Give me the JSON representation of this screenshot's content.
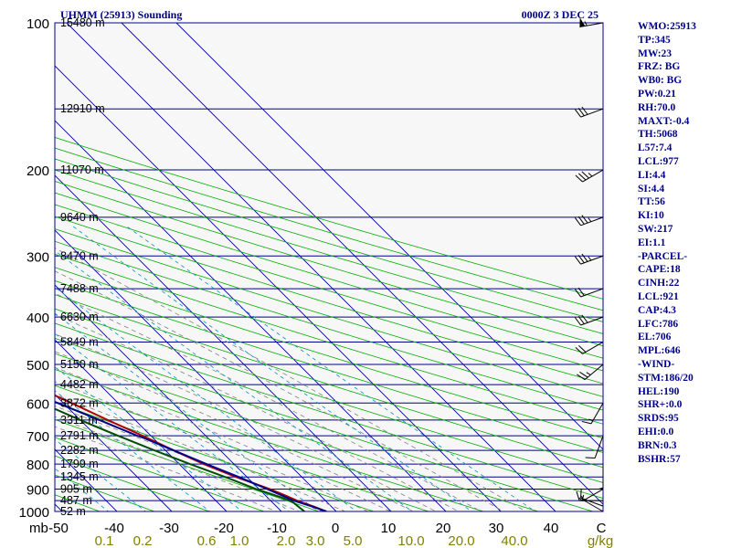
{
  "header": {
    "station_title": "UHMM (25913) Sounding",
    "valid_time": "0000Z  3 DEC 25"
  },
  "sidebar": {
    "lines": [
      "WMO:25913",
      "TP:345",
      "MW:23",
      "FRZ: BG",
      "WB0: BG",
      "PW:0.21",
      "RH:70.0",
      "MAXT:-0.4",
      "TH:5068",
      "L57:7.4",
      "LCL:977",
      "LI:4.4",
      "SI:4.4",
      "TT:56",
      "KI:10",
      "SW:217",
      "EI:1.1",
      "-PARCEL-",
      "CAPE:18",
      "CINH:22",
      "LCL:921",
      "CAP:4.3",
      "LFC:786",
      "EL:706",
      "MPL:646",
      "-WIND-",
      "STM:186/20",
      "HEL:190",
      "SHR+:0.0",
      "SRDS:95",
      "EHI:0.0",
      "BRN:0.3",
      "BSHR:57"
    ]
  },
  "chart_data": {
    "type": "line",
    "title": "UHMM (25913) Sounding",
    "subtitle": "0000Z  3 DEC 25",
    "diagram": "skew-T log-P",
    "xlabel": "Temperature (C)",
    "ylabel": "mb",
    "pressure_axis": {
      "range": [
        1000,
        100
      ],
      "tick_labels": [
        "100",
        "200",
        "300",
        "400",
        "500",
        "600",
        "700",
        "800",
        "900",
        "1000"
      ],
      "unit_label": "mb"
    },
    "temperature_axis": {
      "range": [
        -50,
        50
      ],
      "tick_labels": [
        "-50",
        "-40",
        "-30",
        "-20",
        "-10",
        "0",
        "10",
        "20",
        "30",
        "40",
        "C"
      ]
    },
    "mixing_ratio_labels": [
      "0.1",
      "0.2",
      "0.6",
      "1.0",
      "2.0",
      "3.0",
      "5.0",
      "10.0",
      "20.0",
      "40.0",
      "g/kg"
    ],
    "height_labels": [
      {
        "p": 100,
        "label": "15480 m"
      },
      {
        "p": 150,
        "label": "12910 m"
      },
      {
        "p": 200,
        "label": "11070 m"
      },
      {
        "p": 250,
        "label": "9640 m"
      },
      {
        "p": 300,
        "label": "8470 m"
      },
      {
        "p": 350,
        "label": "7488 m"
      },
      {
        "p": 400,
        "label": "6630 m"
      },
      {
        "p": 450,
        "label": "5849 m"
      },
      {
        "p": 500,
        "label": "5150 m"
      },
      {
        "p": 550,
        "label": "4482 m"
      },
      {
        "p": 600,
        "label": "3872 m"
      },
      {
        "p": 650,
        "label": "3311 m"
      },
      {
        "p": 700,
        "label": "2791 m"
      },
      {
        "p": 750,
        "label": "2282 m"
      },
      {
        "p": 800,
        "label": "1799 m"
      },
      {
        "p": 850,
        "label": "1345 m"
      },
      {
        "p": 900,
        "label": "905 m"
      },
      {
        "p": 950,
        "label": "487 m"
      },
      {
        "p": 1000,
        "label": "52 m"
      }
    ],
    "series": [
      {
        "name": "temperature",
        "color": "#b00000",
        "points": [
          [
            1000,
            -1.8
          ],
          [
            980,
            -3
          ],
          [
            950,
            -5.2
          ],
          [
            925,
            -6.5
          ],
          [
            900,
            -8
          ],
          [
            850,
            -12
          ],
          [
            800,
            -15.5
          ],
          [
            750,
            -18.5
          ],
          [
            700,
            -21.5
          ],
          [
            650,
            -25
          ],
          [
            600,
            -28.5
          ],
          [
            550,
            -32.5
          ],
          [
            500,
            -36.5
          ],
          [
            450,
            -40.5
          ],
          [
            400,
            -44.5
          ],
          [
            380,
            -45.5
          ],
          [
            355,
            -44
          ],
          [
            330,
            -43
          ],
          [
            310,
            -42
          ],
          [
            295,
            -41
          ],
          [
            280,
            -42.5
          ],
          [
            260,
            -44.5
          ],
          [
            250,
            -45.5
          ],
          [
            220,
            -48.5
          ],
          [
            200,
            -51
          ],
          [
            180,
            -54
          ],
          [
            160,
            -57
          ],
          [
            150,
            -58
          ],
          [
            140,
            -59.5
          ],
          [
            125,
            -61
          ],
          [
            120,
            -62
          ],
          [
            110,
            -61
          ],
          [
            100,
            -63
          ]
        ]
      },
      {
        "name": "dewpoint",
        "color": "#004d00",
        "points": [
          [
            1000,
            -5.8
          ],
          [
            960,
            -6.2
          ],
          [
            950,
            -6.5
          ],
          [
            935,
            -7.5
          ],
          [
            900,
            -10.5
          ],
          [
            850,
            -14
          ],
          [
            800,
            -18
          ],
          [
            750,
            -22
          ],
          [
            700,
            -26
          ],
          [
            650,
            -30
          ],
          [
            600,
            -34
          ],
          [
            550,
            -38
          ],
          [
            500,
            -42
          ],
          [
            450,
            -46
          ],
          [
            400,
            -50.5
          ],
          [
            360,
            -52
          ],
          [
            340,
            -52.5
          ],
          [
            320,
            -52
          ],
          [
            310,
            -51
          ],
          [
            300,
            -50.5
          ],
          [
            280,
            -51
          ],
          [
            260,
            -52
          ],
          [
            250,
            -52.5
          ],
          [
            220,
            -56.5
          ],
          [
            200,
            -58.5
          ],
          [
            180,
            -61.5
          ],
          [
            160,
            -64.5
          ],
          [
            150,
            -65.5
          ],
          [
            140,
            -67
          ],
          [
            130,
            -68
          ],
          [
            120,
            -70.5
          ],
          [
            110,
            -70
          ],
          [
            100,
            -71.5
          ]
        ]
      },
      {
        "name": "parcel",
        "color": "#00008b",
        "points": [
          [
            1000,
            -1.8
          ],
          [
            977,
            -3.5
          ],
          [
            950,
            -5.8
          ],
          [
            921,
            -7.3
          ],
          [
            900,
            -8.5
          ],
          [
            850,
            -11.5
          ],
          [
            800,
            -15
          ],
          [
            750,
            -18.5
          ],
          [
            706,
            -21.8
          ],
          [
            700,
            -22.5
          ],
          [
            650,
            -26.5
          ],
          [
            600,
            -31
          ],
          [
            550,
            -36
          ],
          [
            500,
            -41
          ],
          [
            450,
            -46.5
          ],
          [
            400,
            -52.5
          ],
          [
            350,
            -59
          ],
          [
            300,
            -66.5
          ],
          [
            250,
            -74.5
          ],
          [
            200,
            -84
          ],
          [
            150,
            -95
          ],
          [
            120,
            -103
          ]
        ]
      }
    ],
    "wind_barbs": [
      {
        "p": 1000,
        "dir_deg": 300,
        "speed_kt": 5
      },
      {
        "p": 975,
        "dir_deg": 290,
        "speed_kt": 10
      },
      {
        "p": 950,
        "dir_deg": 270,
        "speed_kt": 15
      },
      {
        "p": 900,
        "dir_deg": 240,
        "speed_kt": 5
      },
      {
        "p": 800,
        "dir_deg": 180,
        "speed_kt": 5
      },
      {
        "p": 700,
        "dir_deg": 200,
        "speed_kt": 10
      },
      {
        "p": 600,
        "dir_deg": 210,
        "speed_kt": 15
      },
      {
        "p": 500,
        "dir_deg": 230,
        "speed_kt": 25
      },
      {
        "p": 450,
        "dir_deg": 240,
        "speed_kt": 20
      },
      {
        "p": 400,
        "dir_deg": 250,
        "speed_kt": 30
      },
      {
        "p": 350,
        "dir_deg": 250,
        "speed_kt": 20
      },
      {
        "p": 300,
        "dir_deg": 250,
        "speed_kt": 35
      },
      {
        "p": 250,
        "dir_deg": 250,
        "speed_kt": 35
      },
      {
        "p": 200,
        "dir_deg": 240,
        "speed_kt": 35
      },
      {
        "p": 150,
        "dir_deg": 250,
        "speed_kt": 30
      },
      {
        "p": 100,
        "dir_deg": 260,
        "speed_kt": 55
      }
    ],
    "colors": {
      "isobar": "#000090",
      "isotherm": "#000090",
      "dry_adiabat": "#00aa00",
      "moist_adiabat": "#808080",
      "mixing_ratio": "#0090c0",
      "axis_text": "#000000",
      "mixing_text": "#808000",
      "sidebar_text": "#00008b",
      "background": "#f7f7f7"
    }
  }
}
